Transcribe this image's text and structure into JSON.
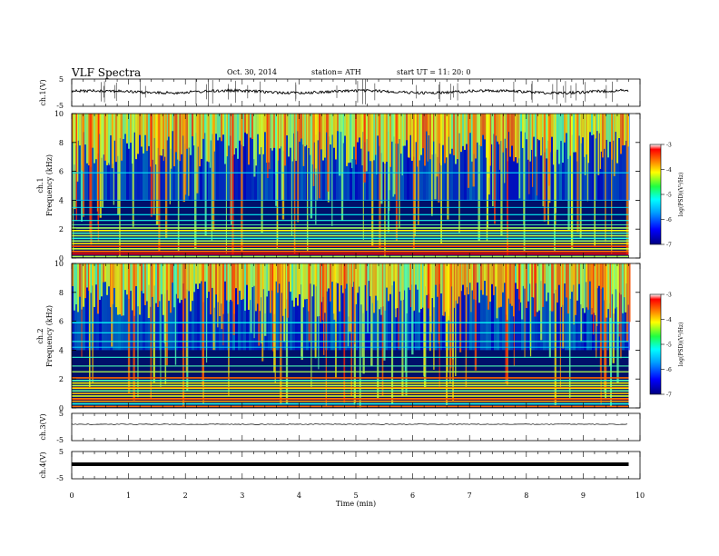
{
  "header": {
    "title": "VLF  Spectra",
    "date": "Oct. 30, 2014",
    "station": "station= ATH",
    "start": "start  UT  =    11: 20: 0"
  },
  "chart_data": [
    {
      "type": "line",
      "panel": "ch1-waveform",
      "ylabel": "ch.1(V)",
      "ylim": [
        -5,
        5
      ],
      "yticks": [
        "5",
        "-5"
      ],
      "series": [
        {
          "x": [
            0,
            1,
            2,
            3,
            4,
            5,
            6,
            7,
            8,
            9,
            9.8
          ],
          "y": [
            0,
            0,
            -0.3,
            0,
            0,
            -0.2,
            0,
            0,
            0,
            0.2,
            0
          ]
        }
      ]
    },
    {
      "type": "heatmap",
      "panel": "ch1-spectrogram",
      "ylabel": "ch.1",
      "ylabel2": "Frequency  (kHz)",
      "ylim": [
        0,
        10
      ],
      "yticks": [
        "0",
        "2",
        "4",
        "6",
        "8",
        "10"
      ],
      "colorbar": {
        "label": "log(PSD)(V²/Hz)",
        "range": [
          -7,
          -3
        ],
        "ticks": [
          "-3",
          "-4",
          "-5",
          "-6",
          "-7"
        ]
      }
    },
    {
      "type": "heatmap",
      "panel": "ch2-spectrogram",
      "ylabel": "ch.2",
      "ylabel2": "Frequency  (kHz)",
      "ylim": [
        0,
        10
      ],
      "yticks": [
        "0",
        "2",
        "4",
        "6",
        "8",
        "10"
      ],
      "colorbar": {
        "label": "log(PSD)(V²/Hz)",
        "range": [
          -7,
          -3
        ],
        "ticks": [
          "-3",
          "-4",
          "-5",
          "-6",
          "-7"
        ]
      }
    },
    {
      "type": "line",
      "panel": "ch3-waveform",
      "ylabel": "ch.3(V)",
      "ylim": [
        -5,
        5
      ],
      "yticks": [
        "5",
        "-5"
      ],
      "series": [
        {
          "x": [
            0,
            9.8
          ],
          "y": [
            0,
            0
          ]
        }
      ]
    },
    {
      "type": "line",
      "panel": "ch4-waveform",
      "ylabel": "ch.4(V)",
      "ylim": [
        -5,
        5
      ],
      "yticks": [
        "5",
        "-5"
      ],
      "series": [
        {
          "x": [
            0,
            9.8
          ],
          "y": [
            0,
            0
          ]
        }
      ]
    }
  ],
  "xaxis": {
    "label": "Time  (min)",
    "xlim": [
      0,
      10
    ],
    "ticks": [
      "0",
      "1",
      "2",
      "3",
      "4",
      "5",
      "6",
      "7",
      "8",
      "9",
      "10"
    ],
    "data_end": 9.8
  },
  "colors": {
    "jet_low": "#00007f",
    "jet_high": "#ff0000",
    "trace": "#000000"
  }
}
